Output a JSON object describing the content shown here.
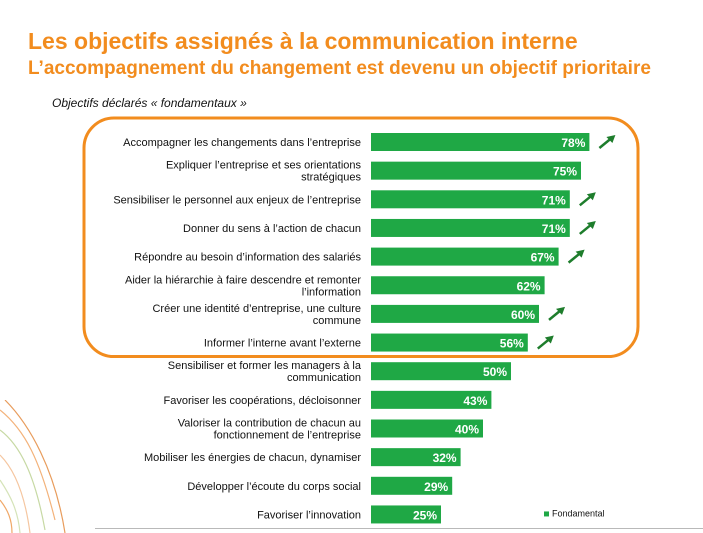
{
  "header": {
    "title": "Les objectifs assignés à la communication interne",
    "subtitle": "L’accompagnement du changement est devenu un objectif prioritaire",
    "section_label": "Objectifs déclarés « fondamentaux »"
  },
  "colors": {
    "bar": "#1fa845",
    "accent": "#f28c1e",
    "arrow": "#1e7d2c"
  },
  "chart_data": {
    "type": "bar",
    "orientation": "horizontal",
    "categories": [
      [
        "Accompagner les changements dans l’entreprise"
      ],
      [
        "Expliquer l’entreprise et ses orientations",
        "stratégiques"
      ],
      [
        "Sensibiliser le personnel aux enjeux de l’entreprise"
      ],
      [
        "Donner du sens à l’action de chacun"
      ],
      [
        "Répondre au besoin d’information des salariés"
      ],
      [
        "Aider la hiérarchie à faire descendre et remonter",
        "l’information"
      ],
      [
        "Créer une identité d’entreprise, une culture",
        "commune"
      ],
      [
        "Informer l’interne avant l’externe"
      ],
      [
        "Sensibiliser et former les managers à la",
        "communication"
      ],
      [
        "Favoriser les coopérations, décloisonner"
      ],
      [
        "Valoriser la contribution de chacun au",
        "fonctionnement de l’entreprise"
      ],
      [
        "Mobiliser les énergies de chacun, dynamiser"
      ],
      [
        "Développer l’écoute du corps social"
      ],
      [
        "Favoriser l’innovation"
      ]
    ],
    "series": [
      {
        "name": "Fondamental",
        "values": [
          78,
          75,
          71,
          71,
          67,
          62,
          60,
          56,
          50,
          43,
          40,
          32,
          29,
          25
        ],
        "labels": [
          "78%",
          "75%",
          "71%",
          "71%",
          "67%",
          "62%",
          "60%",
          "56%",
          "50%",
          "43%",
          "40%",
          "32%",
          "29%",
          "25%"
        ]
      }
    ],
    "trend_up": [
      true,
      false,
      true,
      true,
      true,
      false,
      true,
      true,
      false,
      false,
      false,
      false,
      false,
      false
    ],
    "highlight_group": [
      0,
      1,
      2,
      3,
      4,
      5,
      6,
      7
    ],
    "xlim": [
      0,
      100
    ],
    "grid": false,
    "legend": "bottom-right"
  }
}
